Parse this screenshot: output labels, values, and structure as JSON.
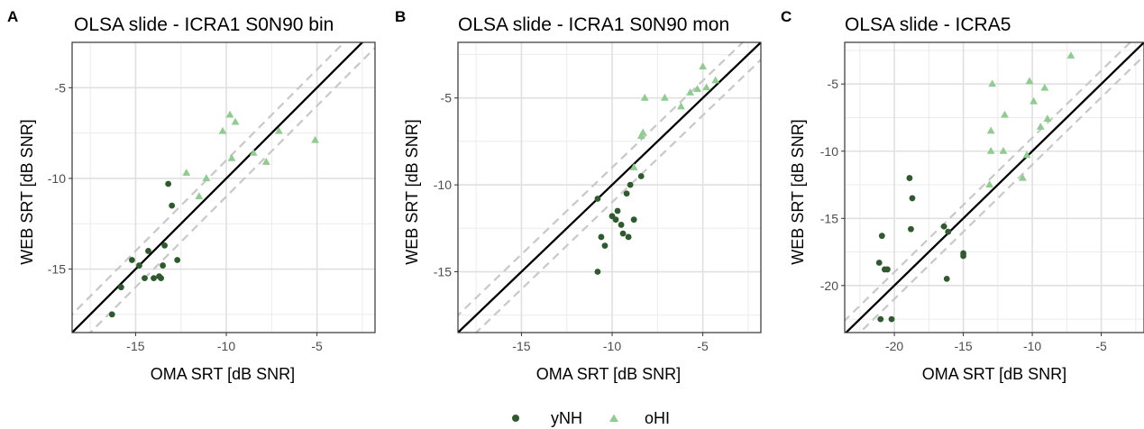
{
  "colors": {
    "yNH": "#2e5a2e",
    "oHI": "#8fcc8f",
    "identity": "#000000",
    "band": "#c8c8c8",
    "grid": "#ebebeb"
  },
  "legend": {
    "position": "bottom",
    "items": [
      {
        "label": "yNH",
        "shape": "circle"
      },
      {
        "label": "oHI",
        "shape": "triangle"
      }
    ]
  },
  "chart_data": [
    {
      "type": "scatter",
      "panel_label": "A",
      "title": "OLSA slide - ICRA1 S0N90 bin",
      "xlabel": "OMA SRT [dB SNR]",
      "ylabel": "WEB SRT [dB SNR]",
      "xlim": [
        -18.5,
        -1.8
      ],
      "ylim": [
        -18.5,
        -2.5
      ],
      "xticks": [
        -15,
        -10,
        -5
      ],
      "xtick_labels": [
        "-15",
        "-10",
        "-5"
      ],
      "yticks": [
        -15,
        -10,
        -5
      ],
      "ytick_labels": [
        "-15",
        "-10",
        "-5"
      ],
      "grid": true,
      "identity_line": true,
      "band_offset": 1,
      "series": [
        {
          "name": "yNH",
          "shape": "circle",
          "points": [
            [
              -16.3,
              -17.5
            ],
            [
              -15.8,
              -16
            ],
            [
              -15.2,
              -14.5
            ],
            [
              -14.8,
              -14.8
            ],
            [
              -14.5,
              -15.5
            ],
            [
              -14.3,
              -14
            ],
            [
              -14,
              -15.5
            ],
            [
              -13.7,
              -15.4
            ],
            [
              -13.6,
              -15.5
            ],
            [
              -13.5,
              -14.8
            ],
            [
              -13.4,
              -13.7
            ],
            [
              -13.2,
              -10.3
            ],
            [
              -13,
              -11.5
            ],
            [
              -12.7,
              -14.5
            ]
          ]
        },
        {
          "name": "oHI",
          "shape": "triangle",
          "points": [
            [
              -12.2,
              -9.7
            ],
            [
              -11.5,
              -11
            ],
            [
              -11.1,
              -10
            ],
            [
              -10.2,
              -7.4
            ],
            [
              -9.8,
              -6.5
            ],
            [
              -9.7,
              -8.9
            ],
            [
              -9.5,
              -6.9
            ],
            [
              -8.5,
              -8.6
            ],
            [
              -7.8,
              -9.1
            ],
            [
              -7.1,
              -7.4
            ],
            [
              -5.1,
              -7.9
            ]
          ]
        }
      ]
    },
    {
      "type": "scatter",
      "panel_label": "B",
      "title": "OLSA slide - ICRA1 S0N90 mon",
      "xlabel": "OMA SRT [dB SNR]",
      "ylabel": "WEB SRT [dB SNR]",
      "xlim": [
        -18.5,
        -1.8
      ],
      "ylim": [
        -18.5,
        -1.8
      ],
      "xticks": [
        -15,
        -10,
        -5
      ],
      "xtick_labels": [
        "-15",
        "-10",
        "-5"
      ],
      "yticks": [
        -15,
        -10,
        -5
      ],
      "ytick_labels": [
        "-15",
        "-10",
        "-5"
      ],
      "grid": true,
      "identity_line": true,
      "band_offset": 1,
      "series": [
        {
          "name": "yNH",
          "shape": "circle",
          "points": [
            [
              -10.8,
              -10.8
            ],
            [
              -10.8,
              -15
            ],
            [
              -10.6,
              -13
            ],
            [
              -10.4,
              -13.5
            ],
            [
              -10,
              -11.8
            ],
            [
              -9.8,
              -12
            ],
            [
              -9.7,
              -11.5
            ],
            [
              -9.5,
              -12.3
            ],
            [
              -9.4,
              -12.8
            ],
            [
              -9.2,
              -10.5
            ],
            [
              -9.1,
              -13
            ],
            [
              -9,
              -10
            ],
            [
              -8.8,
              -12
            ],
            [
              -8.4,
              -9.5
            ]
          ]
        },
        {
          "name": "oHI",
          "shape": "triangle",
          "points": [
            [
              -8.8,
              -9
            ],
            [
              -8.4,
              -7.2
            ],
            [
              -8.3,
              -7
            ],
            [
              -8.2,
              -5
            ],
            [
              -7.1,
              -5
            ],
            [
              -6.2,
              -5.5
            ],
            [
              -5.7,
              -4.7
            ],
            [
              -5.3,
              -4.5
            ],
            [
              -5,
              -3.2
            ],
            [
              -4.8,
              -4.4
            ],
            [
              -4.3,
              -4
            ]
          ]
        }
      ]
    },
    {
      "type": "scatter",
      "panel_label": "C",
      "title": "OLSA slide - ICRA5",
      "xlabel": "OMA SRT [dB SNR]",
      "ylabel": "WEB SRT [dB SNR]",
      "xlim": [
        -23.6,
        -1.9
      ],
      "ylim": [
        -23.5,
        -1.9
      ],
      "xticks": [
        -20,
        -15,
        -10,
        -5
      ],
      "xtick_labels": [
        "-20",
        "-15",
        "-10",
        "-5"
      ],
      "yticks": [
        -20,
        -15,
        -10,
        -5
      ],
      "ytick_labels": [
        "-20",
        "-15",
        "-10",
        "-5"
      ],
      "grid": true,
      "identity_line": true,
      "band_offset": 1,
      "series": [
        {
          "name": "yNH",
          "shape": "circle",
          "points": [
            [
              -21.1,
              -18.3
            ],
            [
              -21,
              -22.5
            ],
            [
              -20.9,
              -16.3
            ],
            [
              -20.7,
              -18.8
            ],
            [
              -20.5,
              -18.8
            ],
            [
              -20.2,
              -22.5
            ],
            [
              -18.9,
              -12
            ],
            [
              -18.8,
              -15.8
            ],
            [
              -18.7,
              -13.5
            ],
            [
              -16.4,
              -15.6
            ],
            [
              -16.2,
              -19.5
            ],
            [
              -16.1,
              -16
            ],
            [
              -15,
              -17.6
            ],
            [
              -15,
              -17.8
            ]
          ]
        },
        {
          "name": "oHI",
          "shape": "triangle",
          "points": [
            [
              -13.1,
              -12.5
            ],
            [
              -13,
              -10
            ],
            [
              -13,
              -8.5
            ],
            [
              -12.9,
              -5
            ],
            [
              -12.1,
              -10
            ],
            [
              -12,
              -7.3
            ],
            [
              -10.7,
              -12
            ],
            [
              -10.4,
              -10.3
            ],
            [
              -10.2,
              -4.8
            ],
            [
              -9.9,
              -6.3
            ],
            [
              -9.4,
              -8.2
            ],
            [
              -9.1,
              -5.3
            ],
            [
              -8.9,
              -7.6
            ],
            [
              -7.2,
              -2.9
            ]
          ]
        }
      ]
    }
  ]
}
